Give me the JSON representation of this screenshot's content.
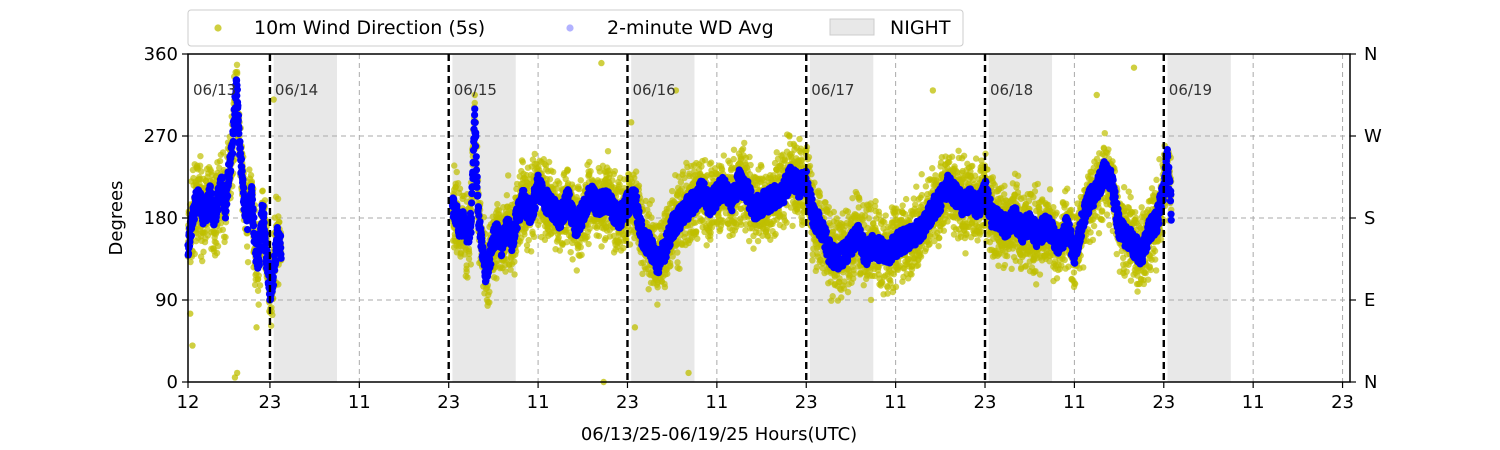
{
  "chart_data": {
    "type": "scatter",
    "title": "",
    "xlabel": "06/13/25-06/19/25  Hours(UTC)",
    "ylabel": "Degrees",
    "xlim": [
      12,
      168
    ],
    "ylim": [
      0,
      360
    ],
    "x_tick_positions": [
      12,
      23,
      35,
      47,
      59,
      71,
      83,
      95,
      107,
      119,
      131,
      143,
      155,
      167
    ],
    "x_tick_labels": [
      "12",
      "23",
      "11",
      "23",
      "11",
      "23",
      "11",
      "23",
      "11",
      "23",
      "11",
      "23",
      "11",
      "23"
    ],
    "y_ticks": [
      0,
      90,
      180,
      270,
      360
    ],
    "y_tick_labels": [
      "0",
      "90",
      "180",
      "270",
      "360"
    ],
    "right_tick_labels": [
      "N",
      "E",
      "S",
      "W",
      "N"
    ],
    "grid": "dashed at y=90,180,270 and at 11/23 hour ticks",
    "legend": {
      "placement": "top-left above plot",
      "entries": [
        {
          "label": "10m Wind Direction (5s)",
          "color": "#bfbf00",
          "kind": "dot"
        },
        {
          "label": "2-minute WD Avg",
          "color": "#0000ff",
          "kind": "dot-faint"
        },
        {
          "label": "NIGHT",
          "color": "#e8e8e8",
          "kind": "patch"
        }
      ]
    },
    "night_shading": [
      [
        23.5,
        32
      ],
      [
        47.5,
        56
      ],
      [
        71.5,
        80
      ],
      [
        95.5,
        104
      ],
      [
        119.5,
        128
      ],
      [
        143.5,
        152
      ]
    ],
    "day_boundaries": [
      23,
      47,
      71,
      95,
      119,
      143
    ],
    "day_labels": [
      {
        "x": 12,
        "label": "06/13"
      },
      {
        "x": 23,
        "label": "06/14"
      },
      {
        "x": 47,
        "label": "06/15"
      },
      {
        "x": 71,
        "label": "06/16"
      },
      {
        "x": 95,
        "label": "06/17"
      },
      {
        "x": 119,
        "label": "06/18"
      },
      {
        "x": 143,
        "label": "06/19"
      }
    ],
    "series": [
      {
        "name": "2-minute WD Avg",
        "color": "#0000ff",
        "segments": [
          {
            "x": [
              12,
              12.5,
              13,
              13.5,
              14,
              14.5,
              15,
              15.5,
              16,
              16.5,
              17,
              17.5,
              18,
              18.5,
              19,
              19.5,
              20,
              20.5,
              21,
              21.5,
              22,
              22.5,
              23,
              23.5,
              24,
              24.5
            ],
            "y": [
              150,
              175,
              195,
              200,
              185,
              190,
              205,
              180,
              200,
              215,
              190,
              230,
              260,
              330,
              250,
              200,
              180,
              210,
              150,
              130,
              195,
              140,
              100,
              120,
              160,
              145
            ]
          },
          {
            "x": [
              47.5,
              48,
              48.5,
              49,
              49.5,
              50,
              50.5,
              51,
              51.5,
              52,
              52.5,
              53,
              53.5,
              54,
              54.5,
              55,
              55.5,
              56,
              57,
              58,
              59,
              60,
              61,
              62,
              63,
              64,
              65,
              66,
              67,
              68,
              69,
              70,
              71,
              72,
              73,
              74,
              75,
              76,
              77,
              78,
              79,
              80,
              81,
              82,
              83,
              84,
              85,
              86,
              87,
              88,
              89,
              90,
              91,
              92,
              93,
              94,
              95,
              96,
              97,
              98,
              99,
              100,
              101,
              102,
              103,
              104,
              105,
              106,
              107,
              108,
              109,
              110,
              111,
              112,
              113,
              114,
              115,
              116,
              117,
              118,
              119,
              120,
              121,
              122,
              123,
              124,
              125,
              126,
              127,
              128,
              129,
              130,
              131,
              132,
              133,
              134,
              135,
              136,
              137,
              138,
              139,
              140,
              141,
              142,
              143,
              143.5,
              144
            ],
            "y": [
              190,
              185,
              170,
              175,
              160,
              175,
              290,
              180,
              150,
              120,
              135,
              155,
              165,
              150,
              160,
              170,
              155,
              175,
              200,
              185,
              215,
              200,
              190,
              180,
              200,
              170,
              185,
              205,
              195,
              200,
              190,
              180,
              195,
              200,
              160,
              150,
              130,
              145,
              170,
              180,
              190,
              200,
              210,
              195,
              205,
              215,
              200,
              220,
              210,
              190,
              195,
              200,
              205,
              210,
              225,
              215,
              220,
              180,
              170,
              145,
              135,
              140,
              150,
              160,
              140,
              150,
              145,
              140,
              150,
              155,
              160,
              165,
              175,
              190,
              200,
              215,
              205,
              195,
              200,
              190,
              210,
              180,
              175,
              170,
              180,
              165,
              175,
              160,
              170,
              165,
              150,
              170,
              140,
              175,
              200,
              210,
              230,
              220,
              170,
              160,
              150,
              140,
              165,
              175,
              210,
              245,
              190
            ]
          }
        ]
      },
      {
        "name": "10m Wind Direction (5s)",
        "color": "#bfbf00",
        "description_spread": "same trend as the average with about ±30° scatter and occasional outliers",
        "segments": [
          {
            "x": [
              12,
              12.5,
              13,
              13.5,
              14,
              14.5,
              15,
              15.5,
              16,
              16.5,
              17,
              17.5,
              18,
              18.5,
              19,
              19.5,
              20,
              20.5,
              21,
              21.5,
              22,
              22.5,
              23,
              23.5,
              24,
              24.5
            ],
            "y": [
              150,
              175,
              195,
              200,
              185,
              190,
              205,
              180,
              200,
              215,
              190,
              230,
              260,
              330,
              250,
              200,
              180,
              210,
              150,
              130,
              195,
              140,
              100,
              120,
              160,
              145
            ]
          },
          {
            "x": [
              47.5,
              48,
              48.5,
              49,
              49.5,
              50,
              50.5,
              51,
              51.5,
              52,
              52.5,
              53,
              53.5,
              54,
              54.5,
              55,
              55.5,
              56,
              57,
              58,
              59,
              60,
              61,
              62,
              63,
              64,
              65,
              66,
              67,
              68,
              69,
              70,
              71,
              72,
              73,
              74,
              75,
              76,
              77,
              78,
              79,
              80,
              81,
              82,
              83,
              84,
              85,
              86,
              87,
              88,
              89,
              90,
              91,
              92,
              93,
              94,
              95,
              96,
              97,
              98,
              99,
              100,
              101,
              102,
              103,
              104,
              105,
              106,
              107,
              108,
              109,
              110,
              111,
              112,
              113,
              114,
              115,
              116,
              117,
              118,
              119,
              120,
              121,
              122,
              123,
              124,
              125,
              126,
              127,
              128,
              129,
              130,
              131,
              132,
              133,
              134,
              135,
              136,
              137,
              138,
              139,
              140,
              141,
              142,
              143,
              143.5,
              144
            ],
            "y": [
              190,
              185,
              170,
              175,
              160,
              175,
              290,
              180,
              150,
              120,
              135,
              155,
              165,
              150,
              160,
              170,
              155,
              175,
              200,
              185,
              215,
              200,
              190,
              180,
              200,
              170,
              185,
              205,
              195,
              200,
              190,
              180,
              195,
              200,
              160,
              150,
              130,
              145,
              170,
              180,
              190,
              200,
              210,
              195,
              205,
              215,
              200,
              220,
              210,
              190,
              195,
              200,
              205,
              210,
              225,
              215,
              220,
              180,
              170,
              145,
              135,
              140,
              150,
              160,
              140,
              150,
              145,
              140,
              150,
              155,
              160,
              165,
              175,
              190,
              200,
              215,
              205,
              195,
              200,
              190,
              210,
              180,
              175,
              170,
              180,
              165,
              175,
              160,
              170,
              165,
              150,
              170,
              140,
              175,
              200,
              210,
              230,
              220,
              170,
              160,
              150,
              140,
              165,
              175,
              210,
              245,
              190
            ]
          }
        ],
        "outliers": [
          [
            12.3,
            75
          ],
          [
            12.6,
            40
          ],
          [
            18.3,
            5
          ],
          [
            18.6,
            10
          ],
          [
            18.4,
            340
          ],
          [
            21.2,
            60
          ],
          [
            23.5,
            310
          ],
          [
            50.5,
            315
          ],
          [
            67.5,
            350
          ],
          [
            67.8,
            0
          ],
          [
            71.5,
            285
          ],
          [
            77.5,
            320
          ],
          [
            79.2,
            10
          ],
          [
            112,
            320
          ],
          [
            139,
            345
          ],
          [
            134,
            315
          ],
          [
            72,
            60
          ]
        ]
      }
    ]
  }
}
